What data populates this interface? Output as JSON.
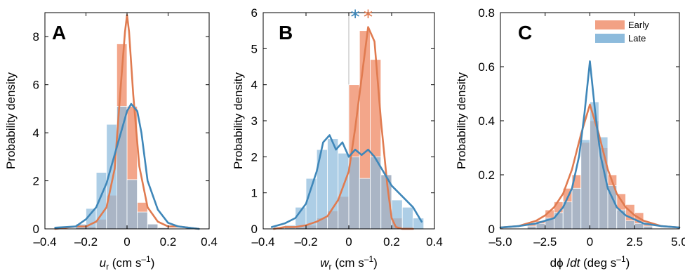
{
  "colors": {
    "early": "#E07B50",
    "early_fill": "#F2A184",
    "late": "#3F87B9",
    "late_fill": "#8DBBDC",
    "axis": "#000000",
    "guide_line": "#b5b5b5"
  },
  "chart_data": [
    {
      "type": "histogram+line",
      "panel_label": "A",
      "ylabel": "Probability density",
      "xlabel_main": "u",
      "xlabel_sub": "r",
      "xlabel_units": "(cm s",
      "xlabel_exp": "–1",
      "xlabel_close": ")",
      "xlim": [
        -0.4,
        0.4
      ],
      "ylim": [
        0,
        9
      ],
      "xticks": [
        -0.4,
        -0.2,
        0,
        0.2,
        0.4
      ],
      "xtick_labels": [
        "–0.4",
        "–0.2",
        "0",
        "0.2",
        "0.4"
      ],
      "yticks": [
        0,
        2,
        4,
        6,
        8
      ],
      "ytick_labels": [
        "0",
        "2",
        "4",
        "6",
        "8"
      ],
      "bin_edges": [
        -0.25,
        -0.2,
        -0.15,
        -0.1,
        -0.05,
        0,
        0.05,
        0.1,
        0.15,
        0.2
      ],
      "series": [
        {
          "name": "Early",
          "hist": [
            0.05,
            0.1,
            0.4,
            1.4,
            7.7,
            5.1,
            1.1,
            0.2,
            0.05
          ],
          "curve": {
            "x": [
              -0.35,
              -0.25,
              -0.2,
              -0.15,
              -0.1,
              -0.06,
              -0.03,
              -0.01,
              0.0,
              0.01,
              0.03,
              0.06,
              0.1,
              0.15,
              0.2,
              0.25,
              0.3,
              0.35
            ],
            "y": [
              0.0,
              0.1,
              0.1,
              0.3,
              0.9,
              2.5,
              6.0,
              8.2,
              8.9,
              8.2,
              5.6,
              2.6,
              0.9,
              0.3,
              0.1,
              0.1,
              0.05,
              0.0
            ]
          }
        },
        {
          "name": "Late",
          "hist": [
            0.2,
            0.85,
            2.35,
            4.35,
            5.1,
            2.05,
            0.7,
            0.2,
            0.05
          ],
          "curve": {
            "x": [
              -0.35,
              -0.25,
              -0.2,
              -0.15,
              -0.1,
              -0.05,
              0.0,
              0.02,
              0.05,
              0.07,
              0.1,
              0.15,
              0.2,
              0.25,
              0.3,
              0.35
            ],
            "y": [
              0.05,
              0.1,
              0.4,
              0.9,
              1.9,
              3.4,
              4.9,
              5.2,
              4.9,
              4.0,
              2.0,
              0.8,
              0.25,
              0.1,
              0.05,
              0.0
            ]
          }
        }
      ]
    },
    {
      "type": "histogram+line",
      "panel_label": "B",
      "ylabel": "Probability density",
      "xlabel_main": "w",
      "xlabel_sub": "r",
      "xlabel_units": "(cm s",
      "xlabel_exp": "–1",
      "xlabel_close": ")",
      "xlim": [
        -0.4,
        0.4
      ],
      "ylim": [
        0,
        6
      ],
      "xticks": [
        -0.4,
        -0.2,
        0,
        0.2,
        0.4
      ],
      "xtick_labels": [
        "–0.4",
        "–0.2",
        "0",
        "0.2",
        "0.4"
      ],
      "yticks": [
        0,
        1,
        2,
        3,
        4,
        5,
        6
      ],
      "ytick_labels": [
        "0",
        "1",
        "2",
        "3",
        "4",
        "5",
        "6"
      ],
      "guide_x": 0,
      "markers": [
        {
          "series": "Late",
          "x": 0.03,
          "symbol": "∗"
        },
        {
          "series": "Early",
          "x": 0.09,
          "symbol": "∗"
        }
      ],
      "bin_edges": [
        -0.35,
        -0.3,
        -0.25,
        -0.2,
        -0.15,
        -0.1,
        -0.05,
        0,
        0.05,
        0.1,
        0.15,
        0.2,
        0.25,
        0.3,
        0.35
      ],
      "series": [
        {
          "name": "Early",
          "hist": [
            0.0,
            0.0,
            0.05,
            0.1,
            0.3,
            0.5,
            0.9,
            4.0,
            5.5,
            4.7,
            1.5,
            0.3,
            0.05,
            0.0
          ],
          "curve": {
            "x": [
              -0.35,
              -0.3,
              -0.25,
              -0.2,
              -0.15,
              -0.1,
              -0.05,
              0.0,
              0.03,
              0.06,
              0.09,
              0.12,
              0.15,
              0.18,
              0.2,
              0.22,
              0.25,
              0.3
            ],
            "y": [
              0.0,
              0.05,
              0.05,
              0.1,
              0.2,
              0.35,
              0.8,
              1.6,
              2.8,
              4.2,
              5.6,
              5.2,
              3.0,
              1.2,
              0.3,
              0.05,
              0.0,
              0.0
            ]
          }
        },
        {
          "name": "Late",
          "hist": [
            0.05,
            0.1,
            0.6,
            1.4,
            2.2,
            2.5,
            2.1,
            2.0,
            1.4,
            2.0,
            1.5,
            0.8,
            0.6,
            0.3
          ],
          "curve": {
            "x": [
              -0.36,
              -0.3,
              -0.25,
              -0.2,
              -0.15,
              -0.12,
              -0.09,
              -0.06,
              -0.03,
              0.0,
              0.03,
              0.06,
              0.09,
              0.12,
              0.15,
              0.2,
              0.25,
              0.3,
              0.34
            ],
            "y": [
              0.05,
              0.15,
              0.3,
              0.7,
              1.6,
              2.4,
              2.6,
              2.2,
              2.4,
              2.0,
              2.2,
              2.05,
              2.2,
              2.0,
              1.7,
              1.2,
              0.9,
              0.6,
              0.2
            ]
          }
        }
      ]
    },
    {
      "type": "histogram+line",
      "panel_label": "C",
      "ylabel": "Probability density",
      "xlabel_main": "dϕ",
      "xlabel_sep": " /",
      "xlabel_italic": "dt",
      "xlabel_units": "(deg s",
      "xlabel_exp": "–1",
      "xlabel_close": ")",
      "xlim": [
        -5,
        5
      ],
      "ylim": [
        0,
        0.8
      ],
      "xticks": [
        -5,
        -2.5,
        0,
        2.5,
        5
      ],
      "xtick_labels": [
        "–5.0",
        "–2.5",
        "0",
        "2.5",
        "5.0"
      ],
      "yticks": [
        0,
        0.2,
        0.4,
        0.6,
        0.8
      ],
      "ytick_labels": [
        "0",
        "0.2",
        "0.4",
        "0.6",
        "0.8"
      ],
      "legend": {
        "position": "top-right",
        "entries": [
          "Early",
          "Late"
        ]
      },
      "bin_edges": [
        -3.5,
        -3,
        -2.5,
        -2,
        -1.5,
        -1,
        -0.5,
        0,
        0.5,
        1,
        1.5,
        2,
        2.5,
        3,
        3.5
      ],
      "series": [
        {
          "name": "Early",
          "hist": [
            0.02,
            0.03,
            0.07,
            0.1,
            0.15,
            0.2,
            0.32,
            0.4,
            0.3,
            0.2,
            0.13,
            0.09,
            0.06,
            0.02
          ],
          "curve": {
            "x": [
              -5,
              -4,
              -3,
              -2.5,
              -2,
              -1.5,
              -1,
              -0.5,
              0,
              0.5,
              1,
              1.5,
              2,
              2.5,
              3,
              4,
              5
            ],
            "y": [
              0.005,
              0.01,
              0.03,
              0.05,
              0.08,
              0.13,
              0.22,
              0.35,
              0.46,
              0.35,
              0.22,
              0.13,
              0.08,
              0.05,
              0.03,
              0.01,
              0.005
            ]
          }
        },
        {
          "name": "Late",
          "hist": [
            0.01,
            0.02,
            0.04,
            0.06,
            0.1,
            0.15,
            0.33,
            0.47,
            0.34,
            0.16,
            0.07,
            0.03,
            0.02,
            0.01
          ],
          "curve": {
            "x": [
              -5,
              -4,
              -3,
              -2,
              -1.5,
              -1,
              -0.6,
              -0.3,
              0,
              0.3,
              0.6,
              1,
              1.5,
              2,
              3,
              4,
              5
            ],
            "y": [
              0.005,
              0.01,
              0.02,
              0.04,
              0.08,
              0.15,
              0.27,
              0.43,
              0.62,
              0.43,
              0.27,
              0.15,
              0.08,
              0.05,
              0.02,
              0.01,
              0.005
            ]
          }
        }
      ]
    }
  ]
}
